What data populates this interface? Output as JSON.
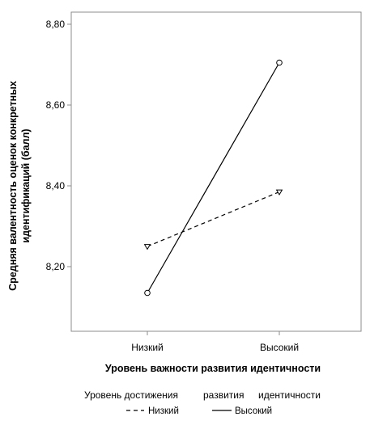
{
  "chart_data": {
    "type": "line",
    "title": "",
    "xlabel": "Уровень важности развития идентичности",
    "ylabel_lines": [
      "Средняя валентность оценок конкретных",
      "идентификаций (балл)"
    ],
    "categories": [
      "Низкий",
      "Высокий"
    ],
    "ylim": [
      8.04,
      8.83
    ],
    "yticks": [
      8.2,
      8.4,
      8.6,
      8.8
    ],
    "ytick_labels": [
      "8,20",
      "8,40",
      "8,60",
      "8,80"
    ],
    "grid": false,
    "legend": {
      "placement": "bottom",
      "title_words": [
        "Уровень достижения",
        "развития",
        "идентичности"
      ]
    },
    "series": [
      {
        "name": "Низкий",
        "values": [
          8.25,
          8.385
        ],
        "line_style": "dashed",
        "marker": "triangle-down",
        "color": "#000000"
      },
      {
        "name": "Высокий",
        "values": [
          8.135,
          8.705
        ],
        "line_style": "solid",
        "marker": "circle",
        "color": "#000000"
      }
    ]
  }
}
